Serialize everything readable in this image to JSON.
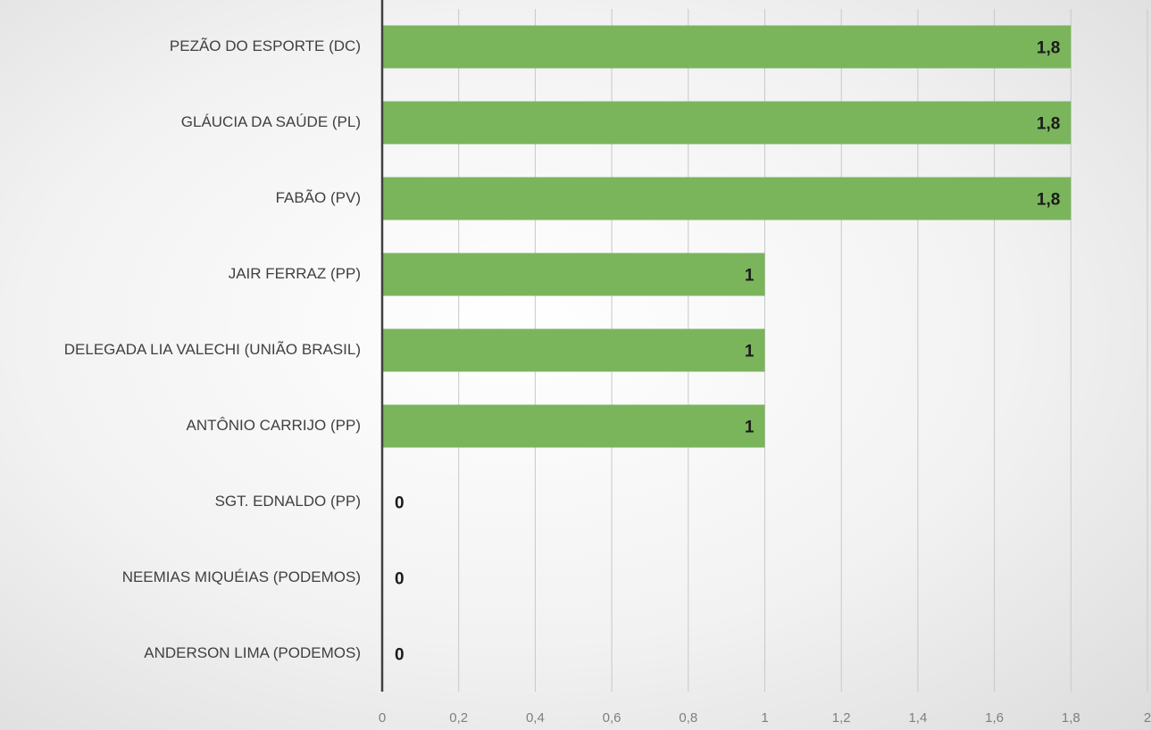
{
  "chart_data": {
    "type": "bar",
    "orientation": "horizontal",
    "categories": [
      "PEZÃO DO ESPORTE (DC)",
      "GLÁUCIA DA SAÚDE (PL)",
      "FABÃO (PV)",
      "JAIR FERRAZ (PP)",
      "DELEGADA LIA VALECHI (UNIÃO BRASIL)",
      "ANTÔNIO CARRIJO (PP)",
      "SGT. EDNALDO (PP)",
      "NEEMIAS MIQUÉIAS (PODEMOS)",
      "ANDERSON LIMA (PODEMOS)"
    ],
    "values": [
      1.8,
      1.8,
      1.8,
      1,
      1,
      1,
      0,
      0,
      0
    ],
    "value_labels": [
      "1,8",
      "1,8",
      "1,8",
      "1",
      "1",
      "1",
      "0",
      "0",
      "0"
    ],
    "color": "#7ab55c",
    "xlim": [
      0,
      2
    ],
    "xticks": [
      0,
      {
        "value": 0.2,
        "label": "0,2"
      },
      {
        "value": 0.4,
        "label": "0,4"
      },
      {
        "value": 0.6,
        "label": "0,6"
      },
      {
        "value": 0.8,
        "label": "0,8"
      },
      1,
      {
        "value": 1.2,
        "label": "1,2"
      },
      {
        "value": 1.4,
        "label": "1,4"
      },
      {
        "value": 1.6,
        "label": "1,6"
      },
      {
        "value": 1.8,
        "label": "1,8"
      },
      2
    ],
    "grid": true
  }
}
